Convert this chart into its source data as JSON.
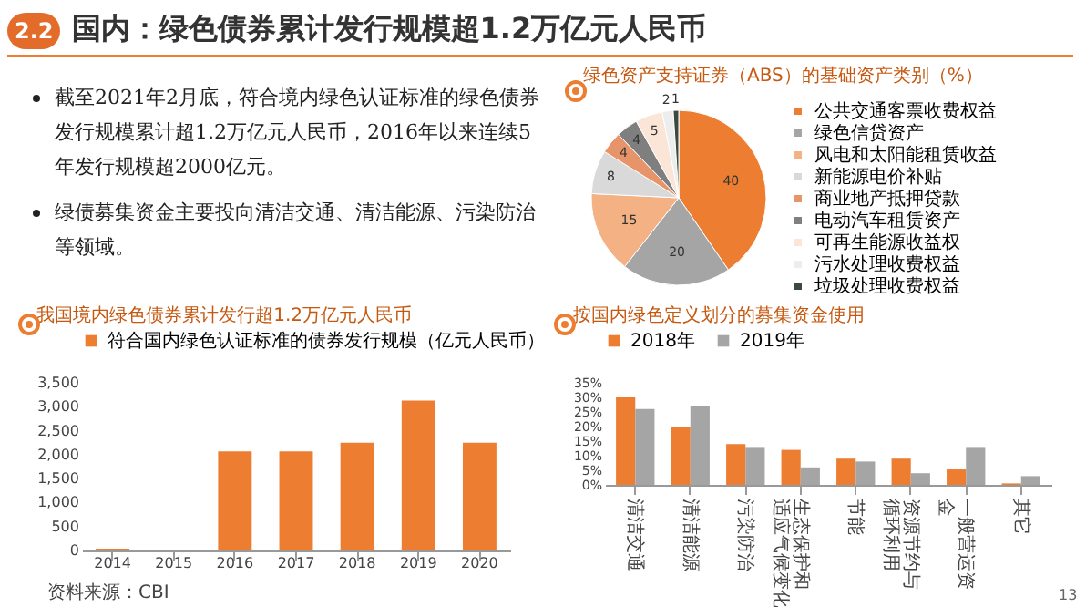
{
  "chart_data": [
    {
      "type": "other",
      "title": "国内：绿色债券累计发行规模超1.2万亿元人民币",
      "annotations": [
        "2.2",
        "截至2021年2月底，符合境内绿色认证标准的绿色债券发行规模累计超1.2万亿元人民币，2016年以来连续5年发行规模超2000亿元。",
        "绿债募集资金主要投向清洁交通、清洁能源、污染防治等领域。",
        "13"
      ]
    },
    {
      "type": "bar",
      "title": "我国境内绿色债券累计发行超1.2万亿元人民币",
      "categories": [
        "2014",
        "2015",
        "2016",
        "2017",
        "2018",
        "2019",
        "2020"
      ],
      "series": [
        {
          "name": "符合国内绿色认证标准的债券发行规模（亿元人民币）",
          "color": "#ed7d31",
          "values": [
            40,
            10,
            2070,
            2070,
            2250,
            3130,
            2250
          ]
        }
      ],
      "ylim": [
        0,
        3500
      ],
      "yticks": [
        0,
        500,
        {
          "value": 1000,
          "label": "1,000"
        },
        {
          "value": 1500,
          "label": "1,500"
        },
        {
          "value": 2000,
          "label": "2,000"
        },
        {
          "value": 2500,
          "label": "2,500"
        },
        {
          "value": 3000,
          "label": "3,000"
        },
        {
          "value": 3500,
          "label": "3,500"
        }
      ],
      "legend": "top",
      "annotations": [
        "资料来源：CBI"
      ]
    },
    {
      "type": "pie",
      "title": "绿色资产支持证券（ABS）的基础资产类别（%）",
      "categories": [
        "公共交通客票收费权益",
        "绿色信贷资产",
        "风电和太阳能租赁收益",
        "新能源电价补贴",
        "商业地产抵押贷款",
        "电动汽车租赁资产",
        "可再生能源收益权",
        "污水处理收费权益",
        "垃圾处理收费权益"
      ],
      "values": [
        40,
        20,
        15,
        8,
        4,
        4,
        5,
        2,
        1
      ],
      "colors": [
        "#ed7d31",
        "#a5a5a5",
        "#f4b183",
        "#d9d9d9",
        "#e8946a",
        "#7f7f7f",
        "#fbe5d6",
        "#ededed",
        "#3b4a3f"
      ],
      "data_labels": true,
      "legend": "right"
    },
    {
      "type": "bar",
      "title": "按国内绿色定义划分的募集资金使用",
      "categories": [
        "清洁交通",
        "清洁能源",
        "污染防治",
        "生态保护和适应气候变化",
        "节能",
        "资源节约与循环利用",
        "一般营运资金",
        "其它"
      ],
      "series": [
        {
          "name": "2018年",
          "color": "#ed7d31",
          "values": [
            30,
            20,
            14,
            12,
            9,
            9,
            5.3,
            0.5
          ]
        },
        {
          "name": "2019年",
          "color": "#a5a5a5",
          "values": [
            26,
            27,
            13,
            6,
            8,
            4,
            13,
            3
          ]
        }
      ],
      "ylim": [
        0,
        35
      ],
      "yticks": [
        {
          "value": 0,
          "label": "0%"
        },
        {
          "value": 5,
          "label": "5%"
        },
        {
          "value": 10,
          "label": "10%"
        },
        {
          "value": 15,
          "label": "15%"
        },
        {
          "value": 20,
          "label": "20%"
        },
        {
          "value": 25,
          "label": "25%"
        },
        {
          "value": 30,
          "label": "30%"
        },
        {
          "value": 35,
          "label": "35%"
        }
      ],
      "legend": "top"
    }
  ]
}
